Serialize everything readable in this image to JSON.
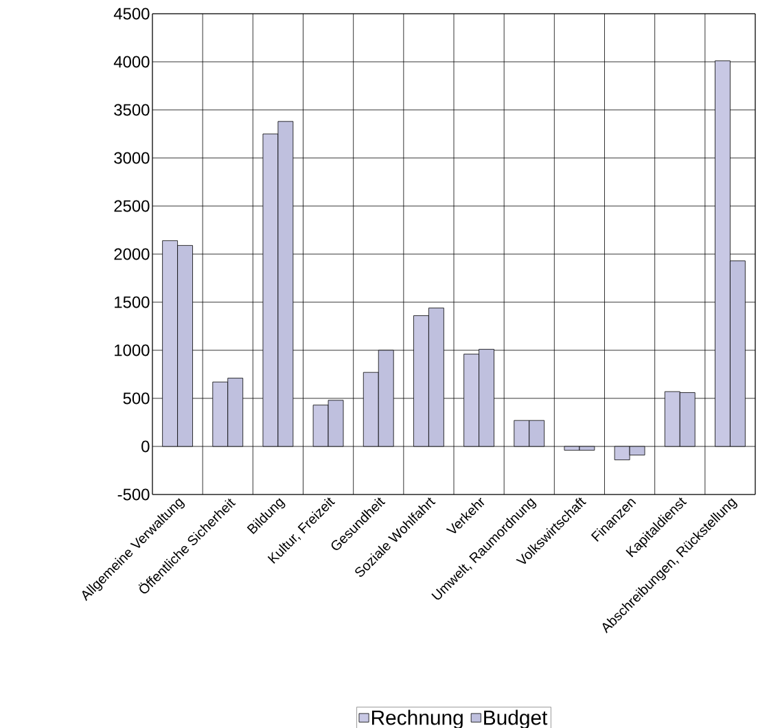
{
  "chart_data": {
    "type": "bar",
    "categories": [
      "Allgemeine Verwaltung",
      "Öffentliche Sicherheit",
      "Bildung",
      "Kultur, Freizeit",
      "Gesundheit",
      "Soziale Wohlfahrt",
      "Verkehr",
      "Umwelt, Raumordnung",
      "Volkswirtschaft",
      "Finanzen",
      "Kapitaldienst",
      "Abschreibungen, Rückstellung"
    ],
    "series": [
      {
        "name": "Rechnung",
        "color": "#c8c8e4",
        "values": [
          2140,
          670,
          3250,
          430,
          770,
          1360,
          960,
          270,
          -40,
          -140,
          570,
          4010
        ]
      },
      {
        "name": "Budget",
        "color": "#bfc0de",
        "values": [
          2090,
          710,
          3380,
          480,
          1000,
          1440,
          1010,
          270,
          -40,
          -90,
          560,
          1930
        ]
      }
    ],
    "ylim": [
      -500,
      4500
    ],
    "yticks": [
      -500,
      0,
      500,
      1000,
      1500,
      2000,
      2500,
      3000,
      3500,
      4000,
      4500
    ],
    "grid": true,
    "legend": "bottom"
  }
}
